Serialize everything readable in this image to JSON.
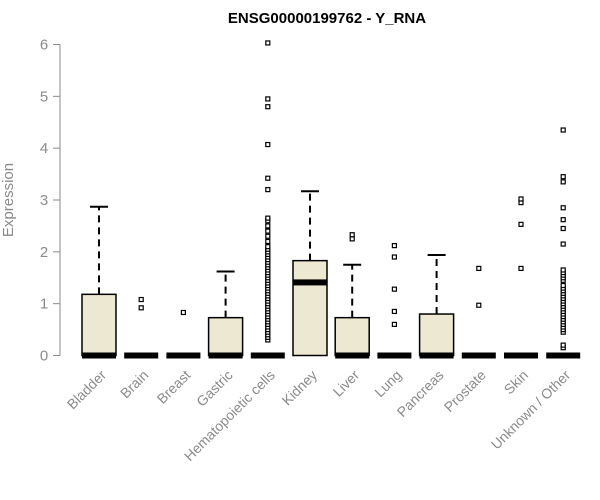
{
  "chart_data": {
    "type": "box",
    "title": "ENSG00000199762 - Y_RNA",
    "ylabel": "Expression",
    "xlabel": "",
    "ylim": [
      0,
      6
    ],
    "yticks": [
      0,
      1,
      2,
      3,
      4,
      5,
      6
    ],
    "grid": false,
    "box_fill": "#ede8d1",
    "line_color": "#000000",
    "axis_color": "#8a8a8a",
    "categories": [
      "Bladder",
      "Brain",
      "Breast",
      "Gastric",
      "Hematopoietic cells",
      "Kidney",
      "Liver",
      "Lung",
      "Pancreas",
      "Prostate",
      "Skin",
      "Unknown / Other"
    ],
    "boxes": [
      {
        "q1": 0,
        "median": 0,
        "q3": 1.18,
        "whisker_low": 0,
        "whisker_high": 2.87,
        "outliers": []
      },
      {
        "q1": 0,
        "median": 0,
        "q3": 0,
        "whisker_low": 0,
        "whisker_high": 0,
        "outliers": [
          0.92,
          1.08
        ]
      },
      {
        "q1": 0,
        "median": 0,
        "q3": 0,
        "whisker_low": 0,
        "whisker_high": 0,
        "outliers": [
          0.83
        ]
      },
      {
        "q1": 0,
        "median": 0,
        "q3": 0.73,
        "whisker_low": 0,
        "whisker_high": 1.62,
        "outliers": []
      },
      {
        "q1": 0,
        "median": 0,
        "q3": 0,
        "whisker_low": 0,
        "whisker_high": 0,
        "outliers": [
          0.3,
          0.35,
          0.4,
          0.45,
          0.5,
          0.55,
          0.6,
          0.65,
          0.7,
          0.75,
          0.8,
          0.85,
          0.9,
          0.95,
          1.0,
          1.05,
          1.1,
          1.15,
          1.2,
          1.25,
          1.3,
          1.35,
          1.4,
          1.45,
          1.5,
          1.55,
          1.6,
          1.65,
          1.7,
          1.75,
          1.8,
          1.85,
          1.9,
          1.95,
          2.0,
          2.05,
          2.1,
          2.2,
          2.3,
          2.4,
          2.5,
          2.6,
          2.65,
          3.2,
          3.42,
          4.07,
          4.8,
          4.95,
          6.03
        ]
      },
      {
        "q1": 0,
        "median": 1.41,
        "q3": 1.83,
        "whisker_low": 0,
        "whisker_high": 3.17,
        "outliers": []
      },
      {
        "q1": 0,
        "median": 0,
        "q3": 0.73,
        "whisker_low": 0,
        "whisker_high": 1.75,
        "outliers": [
          2.25,
          2.33
        ]
      },
      {
        "q1": 0,
        "median": 0,
        "q3": 0,
        "whisker_low": 0,
        "whisker_high": 0,
        "outliers": [
          0.6,
          0.85,
          1.28,
          1.9,
          2.12
        ]
      },
      {
        "q1": 0,
        "median": 0,
        "q3": 0.8,
        "whisker_low": 0,
        "whisker_high": 1.94,
        "outliers": []
      },
      {
        "q1": 0,
        "median": 0,
        "q3": 0,
        "whisker_low": 0,
        "whisker_high": 0,
        "outliers": [
          0.97,
          1.68
        ]
      },
      {
        "q1": 0,
        "median": 0,
        "q3": 0,
        "whisker_low": 0,
        "whisker_high": 0,
        "outliers": [
          1.68,
          2.53,
          2.95,
          3.02
        ]
      },
      {
        "q1": 0,
        "median": 0,
        "q3": 0,
        "whisker_low": 0,
        "whisker_high": 0,
        "outliers": [
          0.15,
          0.2,
          0.45,
          0.5,
          0.55,
          0.6,
          0.65,
          0.7,
          0.75,
          0.8,
          0.85,
          0.9,
          0.95,
          1.0,
          1.05,
          1.1,
          1.15,
          1.2,
          1.25,
          1.3,
          1.35,
          1.45,
          1.5,
          1.55,
          1.6,
          1.65,
          2.15,
          2.45,
          2.62,
          2.85,
          3.35,
          3.45,
          4.35
        ]
      }
    ]
  }
}
